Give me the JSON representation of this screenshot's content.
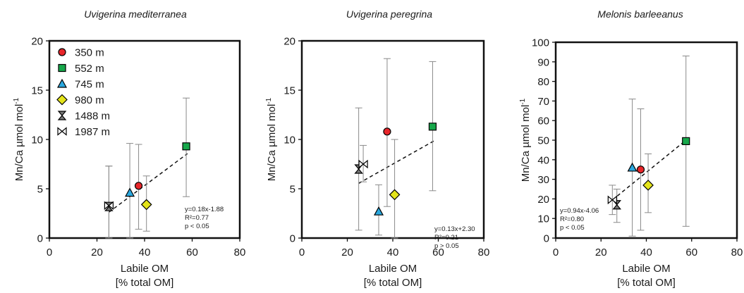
{
  "chart_data": [
    {
      "type": "scatter",
      "title": "Uvigerina mediterranea",
      "xlabel": "Labile OM",
      "xlabel2": "[% total OM]",
      "ylabel": "Mn/Ca µmol mol",
      "ylabel_sup": "-1",
      "xlim": [
        0,
        80
      ],
      "ylim": [
        0,
        20
      ],
      "xticks": [
        0,
        20,
        40,
        60,
        80
      ],
      "yticks": [
        0,
        5,
        10,
        15,
        20
      ],
      "grid": false,
      "legend": "top-left",
      "points": [
        {
          "series": "350 m",
          "x": 37.5,
          "y": 5.3,
          "err_low": 0.9,
          "err_high": 9.5
        },
        {
          "series": "552 m",
          "x": 57.5,
          "y": 9.3,
          "err_low": 4.2,
          "err_high": 14.2
        },
        {
          "series": "745 m",
          "x": 33.8,
          "y": 4.6,
          "err_low": 0.0,
          "err_high": 9.6
        },
        {
          "series": "980 m",
          "x": 40.8,
          "y": 3.4,
          "err_low": 0.7,
          "err_high": 6.3
        },
        {
          "series": "1488 m",
          "x": 25.0,
          "y": 3.2,
          "err_low": 0.0,
          "err_high": 7.3
        },
        {
          "series": "1987 m",
          "x": 25.0,
          "y": 3.3,
          "err_low": 0.0,
          "err_high": 7.3
        }
      ],
      "trendline": {
        "slope": 0.18,
        "intercept": -1.88,
        "x_range": [
          25,
          58
        ]
      },
      "stats": [
        "y=0.18x-1.88",
        "R²=0.77",
        "p < 0.05"
      ]
    },
    {
      "type": "scatter",
      "title": "Uvigerina peregrina",
      "xlabel": "Labile OM",
      "xlabel2": "[% total OM]",
      "ylabel": "Mn/Ca µmol mol",
      "ylabel_sup": "-1",
      "xlim": [
        0,
        80
      ],
      "ylim": [
        0,
        20
      ],
      "xticks": [
        0,
        20,
        40,
        60,
        80
      ],
      "yticks": [
        0,
        5,
        10,
        15,
        20
      ],
      "grid": false,
      "points": [
        {
          "series": "350 m",
          "x": 37.5,
          "y": 10.8,
          "err_low": 3.2,
          "err_high": 18.2
        },
        {
          "series": "552 m",
          "x": 57.5,
          "y": 11.3,
          "err_low": 4.8,
          "err_high": 17.9
        },
        {
          "series": "745 m",
          "x": 33.8,
          "y": 2.7,
          "err_low": 0.3,
          "err_high": 5.4
        },
        {
          "series": "980 m",
          "x": 40.8,
          "y": 4.4,
          "err_low": 0.0,
          "err_high": 10.0
        },
        {
          "series": "1488 m",
          "x": 25.0,
          "y": 7.0,
          "err_low": 0.8,
          "err_high": 13.2
        },
        {
          "series": "1987 m",
          "x": 27.0,
          "y": 7.5,
          "err_low": 5.7,
          "err_high": 9.4
        }
      ],
      "trendline": {
        "slope": 0.13,
        "intercept": 2.3,
        "x_range": [
          25,
          58
        ]
      },
      "stats": [
        "y=0.13x+2.30",
        "R²=0.21",
        "p > 0.05"
      ]
    },
    {
      "type": "scatter",
      "title": "Melonis barleeanus",
      "xlabel": "Labile OM",
      "xlabel2": "[% total OM]",
      "ylabel": "Mn/Ca µmol mol",
      "ylabel_sup": "-1",
      "xlim": [
        0,
        80
      ],
      "ylim": [
        0,
        100
      ],
      "xticks": [
        0,
        20,
        40,
        60,
        80
      ],
      "yticks": [
        0,
        10,
        20,
        30,
        40,
        50,
        60,
        70,
        80,
        90,
        100
      ],
      "grid": false,
      "points": [
        {
          "series": "350 m",
          "x": 37.5,
          "y": 35.0,
          "err_low": 4.0,
          "err_high": 66.0
        },
        {
          "series": "552 m",
          "x": 57.5,
          "y": 49.5,
          "err_low": 6.0,
          "err_high": 93.0
        },
        {
          "series": "745 m",
          "x": 33.8,
          "y": 36.0,
          "err_low": 1.0,
          "err_high": 71.0
        },
        {
          "series": "980 m",
          "x": 40.8,
          "y": 27.0,
          "err_low": 13.0,
          "err_high": 43.0
        },
        {
          "series": "1488 m",
          "x": 27.0,
          "y": 17.0,
          "err_low": 8.0,
          "err_high": 25.0
        },
        {
          "series": "1987 m",
          "x": 25.0,
          "y": 19.5,
          "err_low": 12.0,
          "err_high": 27.0
        }
      ],
      "trendline": {
        "slope": 0.94,
        "intercept": -4.06,
        "x_range": [
          25,
          58
        ]
      },
      "stats": [
        "y=0.94x-4.06",
        "R²=0.80",
        "p < 0.05"
      ]
    }
  ],
  "legend": [
    {
      "label": "350 m",
      "marker": "circle",
      "color": "#e8262a"
    },
    {
      "label": "552 m",
      "marker": "square",
      "color": "#17a84b"
    },
    {
      "label": "745 m",
      "marker": "triangle",
      "color": "#2aa8df"
    },
    {
      "label": "980 m",
      "marker": "diamond",
      "color": "#e4e41a"
    },
    {
      "label": "1488 m",
      "marker": "hourglass",
      "color": "#777777"
    },
    {
      "label": "1987 m",
      "marker": "bowtie",
      "color": "#ffffff"
    }
  ]
}
